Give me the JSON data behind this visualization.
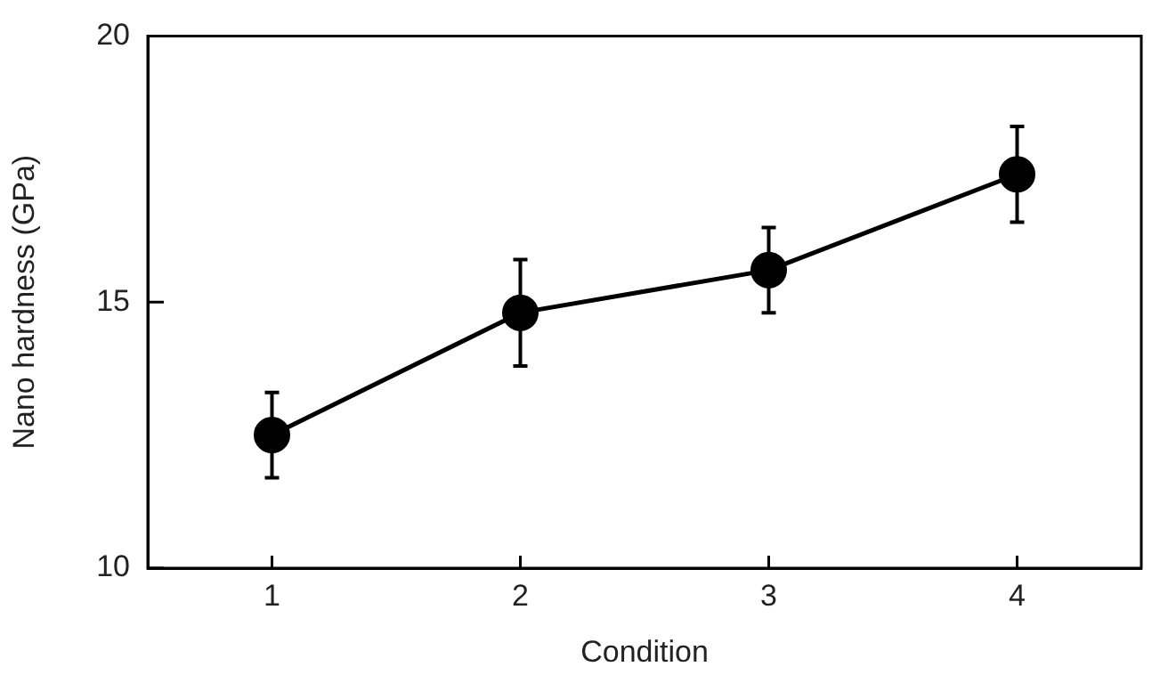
{
  "chart_data": {
    "type": "line",
    "xlabel": "Condition",
    "ylabel": "Nano hardness (GPa)",
    "x": [
      1,
      2,
      3,
      4
    ],
    "series": [
      {
        "color": "#000000",
        "values": [
          12.5,
          14.8,
          15.6,
          17.4
        ],
        "errors": [
          0.8,
          1.0,
          0.8,
          0.9
        ]
      }
    ],
    "xlim": [
      0.5,
      4.5
    ],
    "xticks": [
      1,
      2,
      3,
      4
    ],
    "ylim": [
      10,
      20
    ],
    "yticks": [
      10,
      15,
      20
    ],
    "grid": false,
    "legend": false,
    "marker": "circle",
    "line_style": "solid"
  }
}
